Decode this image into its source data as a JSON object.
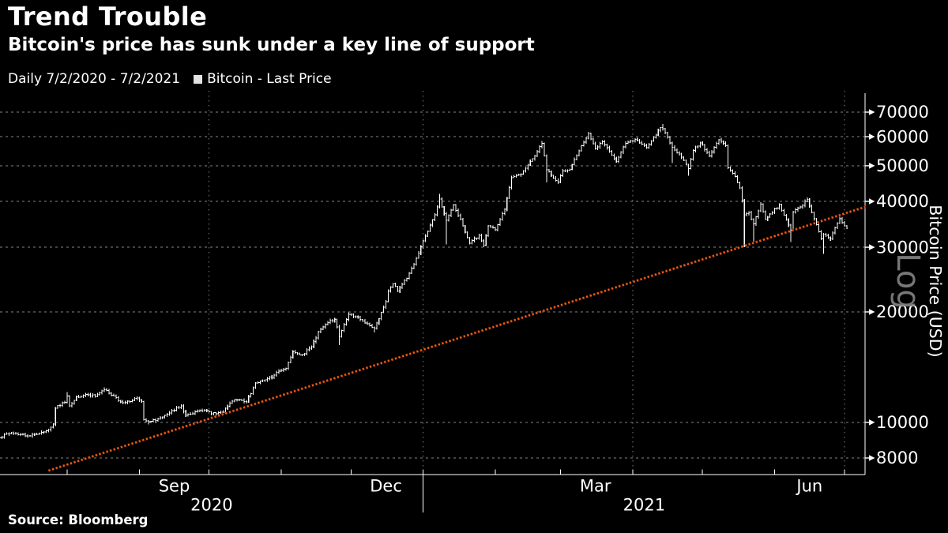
{
  "header": {
    "title": "Trend Trouble",
    "subtitle": "Bitcoin's price has sunk under a key line of support"
  },
  "legend": {
    "period": "Daily 7/2/2020 - 7/2/2021",
    "series_label": "Bitcoin - Last Price",
    "marker_color": "#e3e3e3"
  },
  "source": {
    "text": "Source:  Bloomberg"
  },
  "colors": {
    "background": "#000000",
    "price_bars": "#ffffff",
    "trend_line": "#e85c12",
    "trend_line_halo": "#7e2506",
    "gridline": "#a8a8a8",
    "axis": "#ffffff",
    "text": "#ffffff",
    "log_label": "#8c8c8c"
  },
  "chart_data": {
    "type": "ohlc_bar",
    "frequency": "Daily",
    "date_range": {
      "start": "2020-07-02",
      "end": "2021-07-02"
    },
    "grid": true,
    "legend_position": "top-left",
    "y_axis": {
      "side": "right",
      "scale": "log",
      "title": "Bitcoin Price (USD)",
      "scale_label": "Log",
      "ticks": [
        70000,
        60000,
        50000,
        40000,
        30000,
        20000,
        10000,
        8000
      ],
      "range": [
        7200,
        80000
      ]
    },
    "x_axis": {
      "month_boundaries": [
        "2020-08-01",
        "2020-09-01",
        "2020-10-01",
        "2020-11-01",
        "2020-12-01",
        "2021-01-01",
        "2021-02-01",
        "2021-03-01",
        "2021-04-01",
        "2021-05-01",
        "2021-06-01",
        "2021-07-01"
      ],
      "month_labels": [
        {
          "text": "Sep",
          "date": "2020-09-16"
        },
        {
          "text": "Dec",
          "date": "2020-12-16"
        },
        {
          "text": "Mar",
          "date": "2021-03-16"
        },
        {
          "text": "Jun",
          "date": "2021-06-16"
        }
      ],
      "quarter_gridlines": [
        "2020-10-01",
        "2021-01-01",
        "2021-04-01",
        "2021-07-01"
      ],
      "year_divider": "2021-01-01",
      "year_labels": [
        "2020",
        "2021"
      ]
    },
    "trend_line": {
      "style": "dotted",
      "color": "#e85c12",
      "from": {
        "date": "2020-07-24",
        "value": 7390
      },
      "to": {
        "date": "2021-07-10",
        "value": 38650
      }
    },
    "series": [
      {
        "name": "Bitcoin - Last Price",
        "color": "#ffffff",
        "points_format": [
          "date",
          "close",
          "low_override",
          "high_override"
        ],
        "points": [
          [
            "2020-07-02",
            9090
          ],
          [
            "2020-07-08",
            9375
          ],
          [
            "2020-07-15",
            9190
          ],
          [
            "2020-07-21",
            9390
          ],
          [
            "2020-07-24",
            9550
          ],
          [
            "2020-07-26",
            9900
          ],
          [
            "2020-07-27",
            10940
          ],
          [
            "2020-07-31",
            11350
          ],
          [
            "2020-08-01",
            11800,
            null,
            12100
          ],
          [
            "2020-08-02",
            11100
          ],
          [
            "2020-08-05",
            11750
          ],
          [
            "2020-08-10",
            11900
          ],
          [
            "2020-08-13",
            11780
          ],
          [
            "2020-08-17",
            12280,
            null,
            12470
          ],
          [
            "2020-08-20",
            11860
          ],
          [
            "2020-08-25",
            11320
          ],
          [
            "2020-08-31",
            11650
          ],
          [
            "2020-09-02",
            11400
          ],
          [
            "2020-09-03",
            10170
          ],
          [
            "2020-09-05",
            10050,
            9880
          ],
          [
            "2020-09-08",
            10130
          ],
          [
            "2020-09-12",
            10440
          ],
          [
            "2020-09-15",
            10780
          ],
          [
            "2020-09-19",
            11080
          ],
          [
            "2020-09-21",
            10440
          ],
          [
            "2020-09-25",
            10690
          ],
          [
            "2020-09-30",
            10780
          ],
          [
            "2020-10-02",
            10550
          ],
          [
            "2020-10-07",
            10670
          ],
          [
            "2020-10-09",
            11060
          ],
          [
            "2020-10-12",
            11530
          ],
          [
            "2020-10-17",
            11360
          ],
          [
            "2020-10-21",
            12800
          ],
          [
            "2020-10-25",
            13050
          ],
          [
            "2020-10-28",
            13270
          ],
          [
            "2020-10-31",
            13800
          ],
          [
            "2020-11-03",
            14020
          ],
          [
            "2020-11-06",
            15590
          ],
          [
            "2020-11-10",
            15300
          ],
          [
            "2020-11-14",
            16070
          ],
          [
            "2020-11-17",
            17650
          ],
          [
            "2020-11-21",
            18700
          ],
          [
            "2020-11-24",
            19100
          ],
          [
            "2020-11-26",
            17150,
            16250
          ],
          [
            "2020-11-30",
            19700
          ],
          [
            "2020-12-03",
            19400
          ],
          [
            "2020-12-08",
            18550
          ],
          [
            "2020-12-11",
            18050,
            17600
          ],
          [
            "2020-12-13",
            19150
          ],
          [
            "2020-12-16",
            21300
          ],
          [
            "2020-12-17",
            22800
          ],
          [
            "2020-12-19",
            23850
          ],
          [
            "2020-12-21",
            22800
          ],
          [
            "2020-12-25",
            24700
          ],
          [
            "2020-12-27",
            26250
          ],
          [
            "2020-12-30",
            28900
          ],
          [
            "2021-01-02",
            32200
          ],
          [
            "2021-01-06",
            36800
          ],
          [
            "2021-01-08",
            40600,
            null,
            41950
          ],
          [
            "2021-01-11",
            35500,
            30500
          ],
          [
            "2021-01-14",
            39100
          ],
          [
            "2021-01-17",
            35800
          ],
          [
            "2021-01-21",
            30800
          ],
          [
            "2021-01-25",
            32300
          ],
          [
            "2021-01-27",
            30400
          ],
          [
            "2021-01-29",
            34300
          ],
          [
            "2021-02-01",
            33500
          ],
          [
            "2021-02-05",
            38100
          ],
          [
            "2021-02-08",
            46400
          ],
          [
            "2021-02-12",
            47500
          ],
          [
            "2021-02-17",
            52200
          ],
          [
            "2021-02-21",
            57500,
            null,
            58350
          ],
          [
            "2021-02-23",
            48800,
            45000
          ],
          [
            "2021-02-26",
            46300
          ],
          [
            "2021-02-28",
            45150
          ],
          [
            "2021-03-02",
            48400
          ],
          [
            "2021-03-05",
            48900
          ],
          [
            "2021-03-09",
            54900
          ],
          [
            "2021-03-13",
            61200,
            null,
            61800
          ],
          [
            "2021-03-16",
            55600
          ],
          [
            "2021-03-19",
            58100
          ],
          [
            "2021-03-24",
            52300
          ],
          [
            "2021-03-25",
            51300
          ],
          [
            "2021-03-29",
            57600
          ],
          [
            "2021-04-02",
            59000
          ],
          [
            "2021-04-07",
            56000
          ],
          [
            "2021-04-10",
            59800
          ],
          [
            "2021-04-13",
            63500
          ],
          [
            "2021-04-14",
            63100,
            null,
            64900
          ],
          [
            "2021-04-18",
            56200,
            50900
          ],
          [
            "2021-04-21",
            53800
          ],
          [
            "2021-04-25",
            49100,
            47000
          ],
          [
            "2021-04-27",
            55000
          ],
          [
            "2021-04-30",
            57750
          ],
          [
            "2021-05-04",
            53200
          ],
          [
            "2021-05-08",
            58900
          ],
          [
            "2021-05-11",
            56700
          ],
          [
            "2021-05-12",
            49400
          ],
          [
            "2021-05-15",
            46750
          ],
          [
            "2021-05-17",
            43550
          ],
          [
            "2021-05-19",
            36750,
            30000
          ],
          [
            "2021-05-21",
            37300
          ],
          [
            "2021-05-23",
            34700,
            31100
          ],
          [
            "2021-05-26",
            39300
          ],
          [
            "2021-05-28",
            35700
          ],
          [
            "2021-05-31",
            37300
          ],
          [
            "2021-06-03",
            39200
          ],
          [
            "2021-06-08",
            33400,
            31000
          ],
          [
            "2021-06-09",
            37400
          ],
          [
            "2021-06-13",
            39000
          ],
          [
            "2021-06-15",
            40540
          ],
          [
            "2021-06-18",
            35850
          ],
          [
            "2021-06-21",
            31600
          ],
          [
            "2021-06-22",
            32500,
            28800
          ],
          [
            "2021-06-25",
            31600
          ],
          [
            "2021-06-29",
            35900
          ],
          [
            "2021-07-02",
            33800
          ]
        ]
      }
    ]
  }
}
